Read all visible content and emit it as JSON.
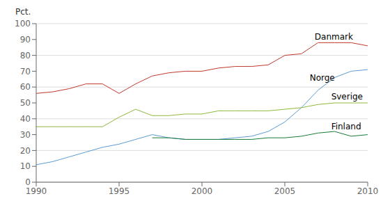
{
  "chart_data": {
    "type": "line",
    "y_label": "Pct.",
    "x": [
      1990,
      1991,
      1992,
      1993,
      1994,
      1995,
      1996,
      1997,
      1998,
      1999,
      2000,
      2001,
      2002,
      2003,
      2004,
      2005,
      2006,
      2007,
      2008,
      2009,
      2010
    ],
    "series": [
      {
        "color": "#c0392b",
        "values": [
          56,
          57,
          59,
          62,
          62,
          56,
          62,
          67,
          69,
          70,
          70,
          72,
          73,
          73,
          74,
          80,
          81,
          88,
          88,
          88,
          86
        ]
      },
      {
        "color": "#5b9bd5",
        "values": [
          11,
          13,
          16,
          19,
          22,
          24,
          27,
          30,
          28,
          27,
          27,
          27,
          28,
          29,
          32,
          38,
          47,
          58,
          66,
          70,
          71
        ]
      },
      {
        "color": "#8db83a",
        "values": [
          35,
          35,
          35,
          35,
          35,
          41,
          46,
          42,
          42,
          43,
          43,
          45,
          45,
          45,
          45,
          46,
          47,
          49,
          50,
          50,
          50
        ]
      },
      {
        "color": "#1a7a3a",
        "values": [
          null,
          null,
          null,
          null,
          null,
          null,
          null,
          28,
          28,
          27,
          27,
          27,
          27,
          27,
          28,
          28,
          29,
          31,
          32,
          29,
          30
        ]
      }
    ],
    "annotations": [
      {
        "text": "Danmark",
        "x": 2006.8,
        "y": 92
      },
      {
        "text": "Norge",
        "x": 2006.5,
        "y": 66
      },
      {
        "text": "Sverige",
        "x": 2007.8,
        "y": 54
      },
      {
        "text": "Finland",
        "x": 2007.8,
        "y": 35
      }
    ],
    "xlim": [
      1990,
      2010
    ],
    "ylim": [
      0,
      100
    ],
    "xticks": [
      1990,
      1995,
      2000,
      2005,
      2010
    ],
    "yticks": [
      0,
      10,
      20,
      30,
      40,
      50,
      60,
      70,
      80,
      90,
      100
    ],
    "grid": true
  }
}
